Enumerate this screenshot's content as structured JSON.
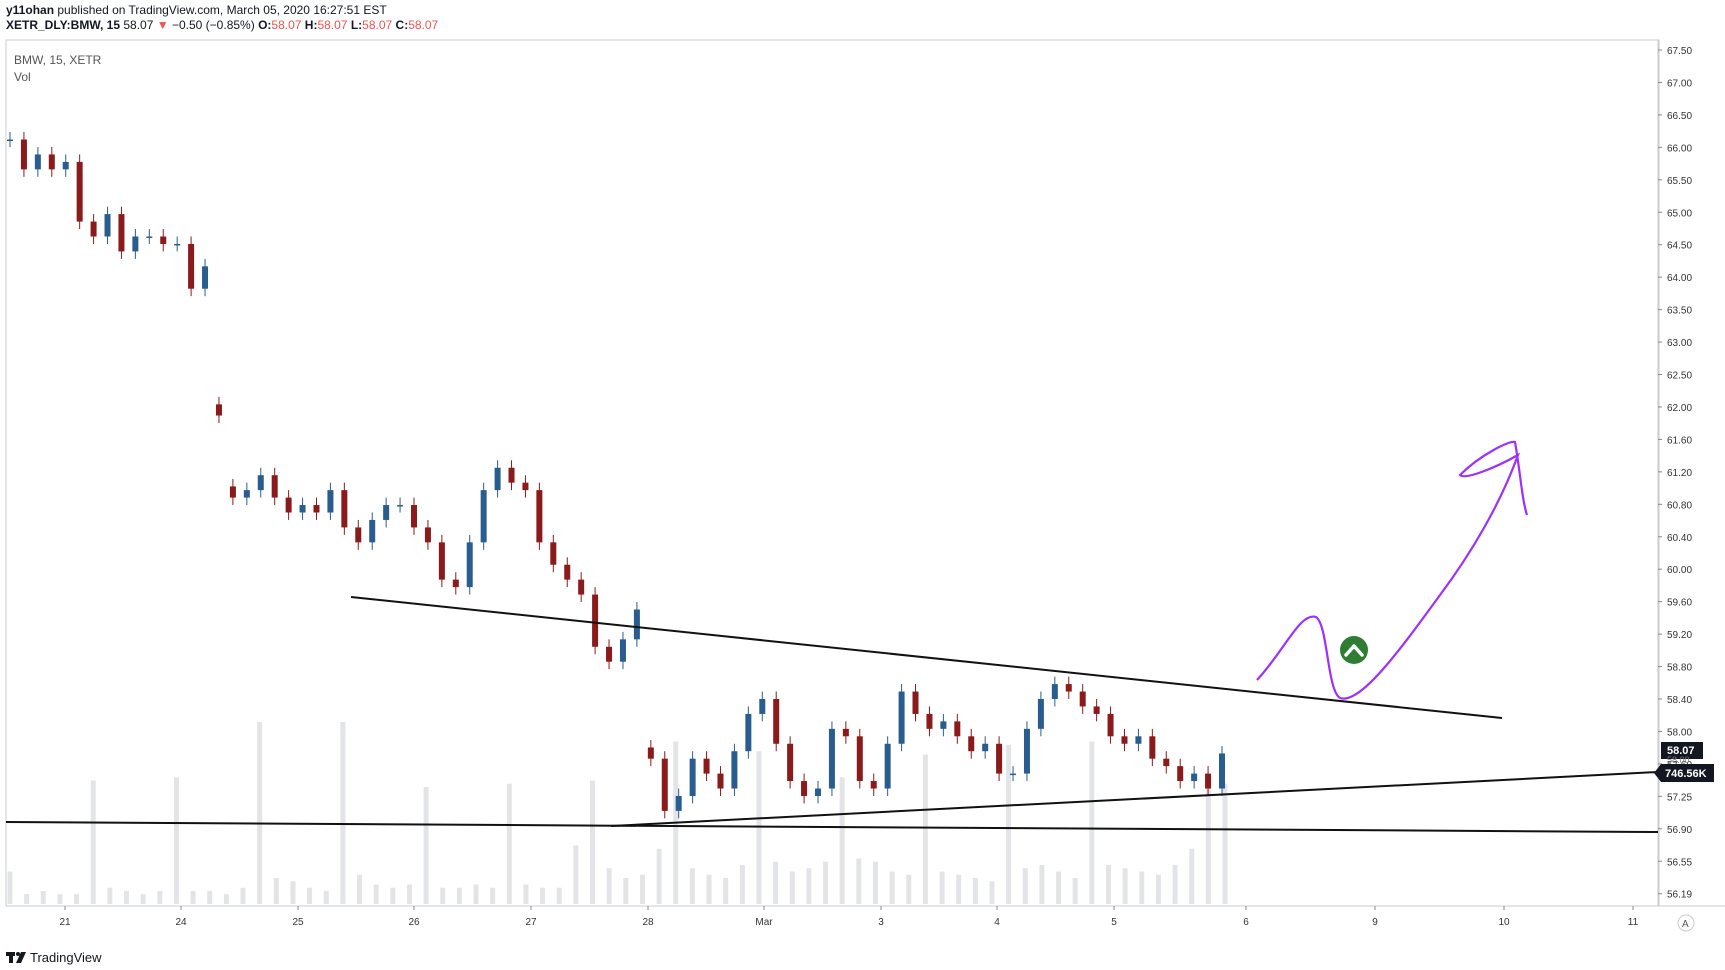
{
  "header": {
    "publisher": "y11ohan",
    "published_text": "published on TradingView.com, March 05, 2020 16:27:51 EST",
    "symbol_line": "XETR_DLY:BMW, 15",
    "close_val": "58.07",
    "change_text": "−0.50 (−0.85%)",
    "o_label": "O:",
    "o_val": "58.07",
    "h_label": "H:",
    "h_val": "58.07",
    "l_label": "L:",
    "l_val": "58.07",
    "c_label": "C:",
    "c_val": "58.07"
  },
  "chart_data": {
    "type": "candlestick",
    "symbol_legend": "BMW, 15, XETR",
    "volume_legend": "Vol",
    "x_tick_labels": [
      "21",
      "24",
      "25",
      "26",
      "27",
      "28",
      "Mar",
      "3",
      "4",
      "5",
      "6",
      "9",
      "10",
      "11"
    ],
    "y_tick_labels": [
      "67.50",
      "67.00",
      "66.50",
      "66.00",
      "65.50",
      "65.00",
      "64.50",
      "64.00",
      "63.50",
      "63.00",
      "62.50",
      "62.00",
      "61.60",
      "61.20",
      "60.80",
      "60.40",
      "60.00",
      "59.60",
      "59.20",
      "58.80",
      "58.40",
      "58.00",
      "57.60",
      "57.25",
      "56.90",
      "56.55",
      "56.19"
    ],
    "y_range": [
      56.19,
      67.5
    ],
    "last_price_label": "58.07",
    "volume_label": "746.56K",
    "hidden_price_label": "58.00",
    "close_points": [
      [
        0,
        66.3
      ],
      [
        1,
        65.9
      ],
      [
        2,
        66.1
      ],
      [
        3,
        65.9
      ],
      [
        4,
        66.0
      ],
      [
        5,
        65.2
      ],
      [
        6,
        65.0
      ],
      [
        7,
        65.3
      ],
      [
        8,
        64.8
      ],
      [
        9,
        65.0
      ],
      [
        10,
        65.0
      ],
      [
        11,
        64.9
      ],
      [
        12,
        64.9
      ],
      [
        13,
        64.3
      ],
      [
        14,
        64.6
      ],
      [
        15,
        62.6
      ],
      [
        16,
        61.5
      ],
      [
        17,
        61.6
      ],
      [
        18,
        61.8
      ],
      [
        19,
        61.5
      ],
      [
        20,
        61.3
      ],
      [
        21,
        61.4
      ],
      [
        22,
        61.3
      ],
      [
        23,
        61.6
      ],
      [
        24,
        61.1
      ],
      [
        25,
        60.9
      ],
      [
        26,
        61.2
      ],
      [
        27,
        61.4
      ],
      [
        28,
        61.4
      ],
      [
        29,
        61.1
      ],
      [
        30,
        60.9
      ],
      [
        31,
        60.4
      ],
      [
        32,
        60.3
      ],
      [
        33,
        60.9
      ],
      [
        34,
        61.6
      ],
      [
        35,
        61.9
      ],
      [
        36,
        61.7
      ],
      [
        37,
        61.6
      ],
      [
        38,
        60.9
      ],
      [
        39,
        60.6
      ],
      [
        40,
        60.4
      ],
      [
        41,
        60.2
      ],
      [
        42,
        59.5
      ],
      [
        43,
        59.3
      ],
      [
        44,
        59.6
      ],
      [
        45,
        60.0
      ],
      [
        46,
        58.0
      ],
      [
        47,
        57.3
      ],
      [
        48,
        57.5
      ],
      [
        49,
        58.0
      ],
      [
        50,
        57.8
      ],
      [
        51,
        57.6
      ],
      [
        52,
        58.1
      ],
      [
        53,
        58.6
      ],
      [
        54,
        58.8
      ],
      [
        55,
        58.2
      ],
      [
        56,
        57.7
      ],
      [
        57,
        57.5
      ],
      [
        58,
        57.6
      ],
      [
        59,
        58.4
      ],
      [
        60,
        58.3
      ],
      [
        61,
        57.7
      ],
      [
        62,
        57.6
      ],
      [
        63,
        58.2
      ],
      [
        64,
        58.9
      ],
      [
        65,
        58.6
      ],
      [
        66,
        58.4
      ],
      [
        67,
        58.5
      ],
      [
        68,
        58.3
      ],
      [
        69,
        58.1
      ],
      [
        70,
        58.2
      ],
      [
        71,
        57.8
      ],
      [
        72,
        57.8
      ],
      [
        73,
        58.4
      ],
      [
        74,
        58.8
      ],
      [
        75,
        59.0
      ],
      [
        76,
        58.9
      ],
      [
        77,
        58.7
      ],
      [
        78,
        58.6
      ],
      [
        79,
        58.3
      ],
      [
        80,
        58.2
      ],
      [
        81,
        58.3
      ],
      [
        82,
        58.0
      ],
      [
        83,
        57.9
      ],
      [
        84,
        57.7
      ],
      [
        85,
        57.8
      ],
      [
        86,
        57.6
      ],
      [
        87,
        58.07
      ]
    ],
    "volume_values": [
      1.0,
      0.3,
      0.4,
      0.3,
      0.3,
      3.8,
      0.5,
      0.4,
      0.3,
      0.4,
      3.9,
      0.4,
      0.4,
      0.3,
      0.5,
      5.6,
      0.8,
      0.7,
      0.5,
      0.4,
      5.6,
      0.9,
      0.6,
      0.5,
      0.6,
      3.6,
      0.5,
      0.5,
      0.6,
      0.5,
      3.7,
      0.6,
      0.5,
      0.5,
      1.8,
      3.8,
      1.1,
      0.8,
      0.9,
      1.7,
      5.0,
      1.1,
      0.9,
      0.8,
      1.2,
      4.7,
      1.3,
      1.0,
      1.1,
      1.3,
      3.9,
      1.4,
      1.3,
      1.0,
      0.9,
      4.6,
      1.0,
      0.9,
      0.8,
      0.7,
      4.9,
      1.1,
      1.2,
      1.0,
      0.8,
      5.0,
      1.2,
      1.1,
      1.0,
      0.9,
      1.2,
      1.7,
      3.9,
      3.7
    ]
  },
  "annotations": {
    "trendlines": [
      "upper resistance line",
      "lower ascending support line",
      "horizontal support line"
    ],
    "projection_color": "#9b30ff",
    "arrow_badge_color": "#2e7d32",
    "candle_up_color": "#2a5d8f",
    "candle_down_color": "#8b1a1a"
  },
  "footer": {
    "brand": "TradingView",
    "auto_scale": "A"
  }
}
